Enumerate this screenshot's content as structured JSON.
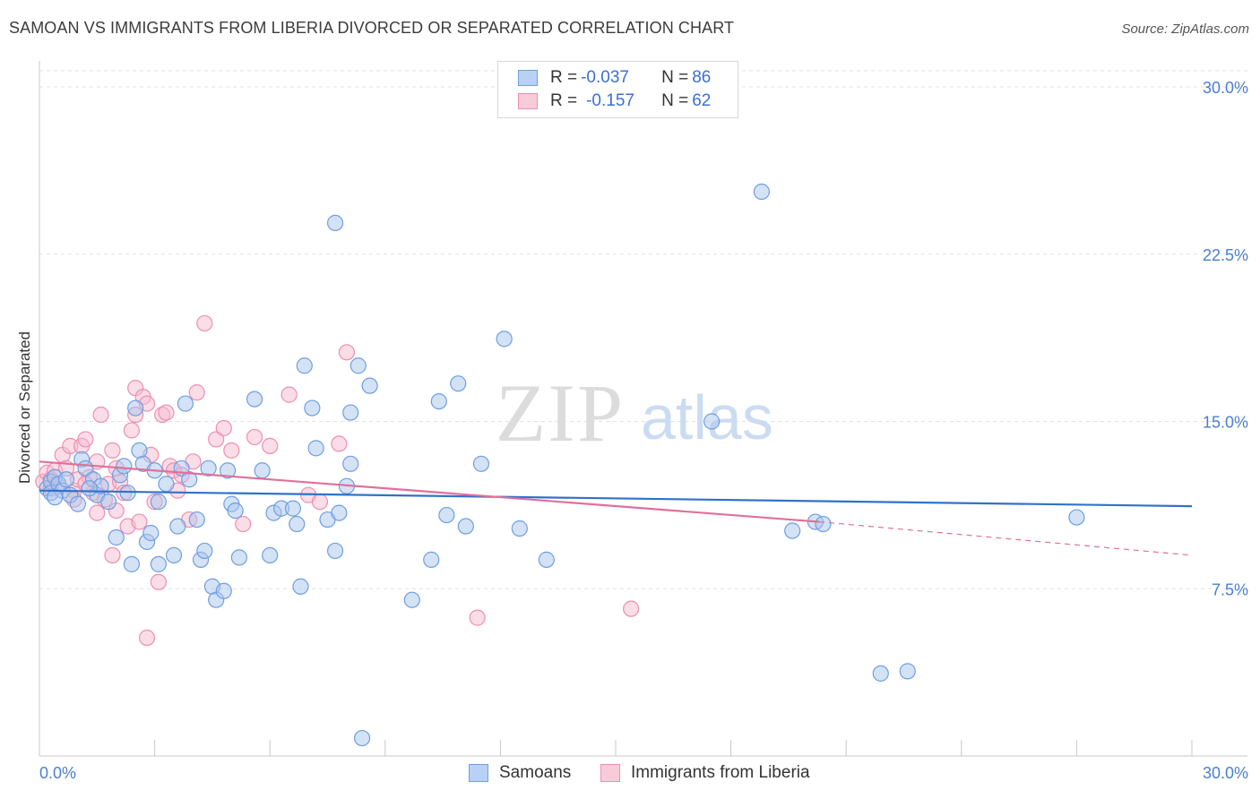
{
  "title": "SAMOAN VS IMMIGRANTS FROM LIBERIA DIVORCED OR SEPARATED CORRELATION CHART",
  "source": "Source: ZipAtlas.com",
  "watermark": {
    "zip": "ZIP",
    "atlas": "atlas"
  },
  "colors": {
    "blue_fill": "#a9c6ee",
    "blue_stroke": "#6d9fe0",
    "blue_line": "#2f72c9",
    "pink_fill": "#f5bccf",
    "pink_stroke": "#ee8fb0",
    "pink_line": "#e0709b",
    "tick_label": "#4a7fcf",
    "grid": "#e2e2e2"
  },
  "legend": {
    "rows": [
      {
        "r_label": "R = ",
        "r_value": "-0.037",
        "n_label": "N = ",
        "n_value": "86",
        "color": "blue"
      },
      {
        "r_label": "R = ",
        "r_value": "-0.157",
        "n_label": "N = ",
        "n_value": "62",
        "color": "pink"
      }
    ]
  },
  "bottom_legend": [
    "Samoans",
    "Immigrants from Liberia"
  ],
  "chart_data": {
    "type": "scatter",
    "title": "SAMOAN VS IMMIGRANTS FROM LIBERIA DIVORCED OR SEPARATED CORRELATION CHART",
    "xlabel": "",
    "ylabel": "Divorced or Separated",
    "xlim": [
      0,
      30
    ],
    "ylim": [
      0,
      30.7
    ],
    "x_tick_labels": {
      "0": "0.0%",
      "30": "30.0%"
    },
    "y_ticks": [
      7.5,
      15.0,
      22.5,
      30.0
    ],
    "y_tick_labels": [
      "7.5%",
      "15.0%",
      "22.5%",
      "30.0%"
    ],
    "grid": true,
    "legend_position": "top-center",
    "series": [
      {
        "name": "Samoans",
        "color": "blue",
        "r": -0.037,
        "n": 86,
        "trend": {
          "x0": 0,
          "y0": 11.9,
          "x1": 30,
          "y1": 11.2
        },
        "points": [
          [
            0.2,
            12.0
          ],
          [
            0.3,
            12.3
          ],
          [
            0.3,
            11.8
          ],
          [
            0.4,
            12.5
          ],
          [
            0.5,
            12.2
          ],
          [
            0.6,
            11.9
          ],
          [
            0.7,
            12.4
          ],
          [
            0.8,
            11.7
          ],
          [
            1.0,
            11.3
          ],
          [
            1.1,
            13.3
          ],
          [
            1.2,
            12.9
          ],
          [
            1.4,
            12.4
          ],
          [
            1.5,
            11.7
          ],
          [
            1.6,
            12.1
          ],
          [
            1.8,
            11.4
          ],
          [
            2.1,
            12.6
          ],
          [
            2.3,
            11.8
          ],
          [
            2.0,
            9.8
          ],
          [
            2.4,
            8.6
          ],
          [
            2.6,
            13.7
          ],
          [
            2.5,
            15.6
          ],
          [
            2.7,
            13.1
          ],
          [
            2.8,
            9.6
          ],
          [
            2.9,
            10.0
          ],
          [
            3.1,
            8.6
          ],
          [
            3.1,
            11.4
          ],
          [
            3.3,
            12.2
          ],
          [
            3.5,
            9.0
          ],
          [
            3.6,
            10.3
          ],
          [
            3.7,
            12.9
          ],
          [
            3.8,
            15.8
          ],
          [
            3.9,
            12.4
          ],
          [
            4.1,
            10.6
          ],
          [
            4.2,
            8.8
          ],
          [
            4.3,
            9.2
          ],
          [
            4.4,
            12.9
          ],
          [
            4.5,
            7.6
          ],
          [
            4.6,
            7.0
          ],
          [
            4.8,
            7.4
          ],
          [
            4.9,
            12.8
          ],
          [
            5.0,
            11.3
          ],
          [
            5.1,
            11.0
          ],
          [
            5.2,
            8.9
          ],
          [
            5.6,
            16.0
          ],
          [
            5.8,
            12.8
          ],
          [
            6.0,
            9.0
          ],
          [
            6.1,
            10.9
          ],
          [
            6.3,
            11.1
          ],
          [
            6.6,
            11.1
          ],
          [
            6.7,
            10.4
          ],
          [
            6.8,
            7.6
          ],
          [
            6.9,
            17.5
          ],
          [
            7.1,
            15.6
          ],
          [
            7.2,
            13.8
          ],
          [
            7.5,
            10.6
          ],
          [
            7.7,
            9.2
          ],
          [
            7.8,
            10.9
          ],
          [
            8.0,
            12.1
          ],
          [
            8.1,
            13.1
          ],
          [
            7.7,
            23.9
          ],
          [
            8.1,
            15.4
          ],
          [
            8.3,
            17.5
          ],
          [
            8.6,
            16.6
          ],
          [
            8.4,
            0.8
          ],
          [
            9.7,
            7.0
          ],
          [
            10.2,
            8.8
          ],
          [
            10.4,
            15.9
          ],
          [
            10.6,
            10.8
          ],
          [
            10.9,
            16.7
          ],
          [
            11.1,
            10.3
          ],
          [
            11.5,
            13.1
          ],
          [
            12.1,
            18.7
          ],
          [
            12.5,
            10.2
          ],
          [
            13.2,
            8.8
          ],
          [
            17.5,
            15.0
          ],
          [
            18.8,
            25.3
          ],
          [
            19.6,
            10.1
          ],
          [
            20.2,
            10.5
          ],
          [
            20.4,
            10.4
          ],
          [
            21.9,
            3.7
          ],
          [
            22.6,
            3.8
          ],
          [
            27.0,
            10.7
          ],
          [
            0.4,
            11.6
          ],
          [
            1.3,
            12.0
          ],
          [
            2.2,
            13.0
          ],
          [
            3.0,
            12.8
          ]
        ]
      },
      {
        "name": "Immigrants from Liberia",
        "color": "pink",
        "r": -0.157,
        "n": 62,
        "trend": {
          "x0": 0,
          "y0": 13.2,
          "x1": 20.3,
          "y1": 10.5,
          "dash_x1": 30,
          "dash_y1": 9.0
        },
        "points": [
          [
            0.1,
            12.3
          ],
          [
            0.2,
            12.7
          ],
          [
            0.3,
            12.4
          ],
          [
            0.4,
            12.8
          ],
          [
            0.5,
            12.1
          ],
          [
            0.6,
            13.5
          ],
          [
            0.7,
            12.9
          ],
          [
            0.8,
            13.9
          ],
          [
            0.9,
            11.9
          ],
          [
            1.0,
            12.4
          ],
          [
            1.1,
            13.9
          ],
          [
            1.2,
            14.2
          ],
          [
            1.3,
            12.5
          ],
          [
            1.4,
            11.8
          ],
          [
            1.5,
            13.2
          ],
          [
            1.6,
            15.3
          ],
          [
            1.7,
            11.5
          ],
          [
            1.8,
            12.2
          ],
          [
            1.9,
            13.7
          ],
          [
            2.0,
            11.0
          ],
          [
            2.1,
            12.3
          ],
          [
            2.2,
            11.8
          ],
          [
            2.3,
            10.3
          ],
          [
            2.4,
            14.6
          ],
          [
            2.5,
            15.3
          ],
          [
            2.5,
            16.5
          ],
          [
            2.6,
            10.5
          ],
          [
            2.7,
            16.1
          ],
          [
            2.8,
            15.8
          ],
          [
            2.9,
            13.5
          ],
          [
            3.0,
            11.4
          ],
          [
            3.1,
            7.8
          ],
          [
            3.2,
            15.3
          ],
          [
            3.3,
            15.4
          ],
          [
            3.4,
            13.0
          ],
          [
            3.5,
            12.8
          ],
          [
            3.7,
            12.6
          ],
          [
            3.9,
            10.6
          ],
          [
            4.0,
            13.2
          ],
          [
            4.1,
            16.3
          ],
          [
            4.3,
            19.4
          ],
          [
            4.6,
            14.2
          ],
          [
            4.8,
            14.7
          ],
          [
            5.0,
            13.7
          ],
          [
            5.3,
            10.4
          ],
          [
            5.6,
            14.3
          ],
          [
            6.0,
            13.9
          ],
          [
            6.5,
            16.2
          ],
          [
            7.0,
            11.7
          ],
          [
            7.3,
            11.4
          ],
          [
            8.0,
            18.1
          ],
          [
            7.8,
            14.0
          ],
          [
            11.4,
            6.2
          ],
          [
            15.4,
            6.6
          ],
          [
            2.8,
            5.3
          ],
          [
            1.9,
            9.0
          ],
          [
            1.2,
            12.2
          ],
          [
            0.9,
            11.5
          ],
          [
            2.0,
            12.9
          ],
          [
            3.6,
            11.9
          ],
          [
            1.5,
            10.9
          ],
          [
            0.3,
            12.0
          ]
        ]
      }
    ]
  }
}
